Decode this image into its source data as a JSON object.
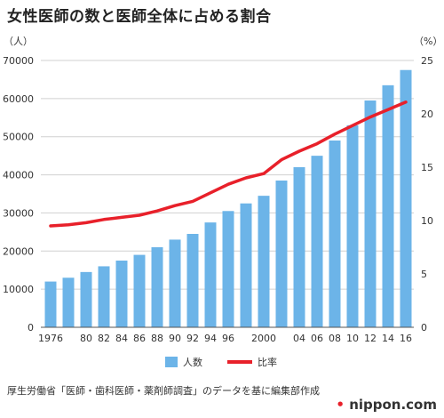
{
  "title": "女性医師の数と医師全体に占める割合",
  "source": "厚生労働省「医師・歯科医師・薬剤師調査」のデータを基に編集部作成",
  "brand": {
    "dot": "•",
    "name": "nippon.com"
  },
  "colors": {
    "bar": "#6cb4e8",
    "line": "#e8202a",
    "grid": "#d0d0d0",
    "axis": "#555555"
  },
  "chart_data": {
    "type": "bar",
    "x": [
      "1976",
      "1978",
      "1980",
      "1982",
      "1984",
      "1986",
      "1988",
      "1990",
      "1992",
      "1994",
      "1996",
      "1998",
      "2000",
      "2002",
      "2004",
      "2006",
      "2008",
      "2010",
      "2012",
      "2014",
      "2016"
    ],
    "x_tick_labels": [
      "1976",
      "",
      "80",
      "82",
      "84",
      "86",
      "88",
      "90",
      "92",
      "94",
      "96",
      "",
      "2000",
      "",
      "04",
      "06",
      "08",
      "10",
      "12",
      "14",
      "16"
    ],
    "left_axis": {
      "unit_label": "（人）",
      "ylim": [
        0,
        70000
      ],
      "ticks": [
        0,
        10000,
        20000,
        30000,
        40000,
        50000,
        60000,
        70000
      ]
    },
    "right_axis": {
      "unit_label": "（%）",
      "ylim": [
        0,
        25
      ],
      "ticks": [
        0,
        5,
        10,
        15,
        20,
        25
      ]
    },
    "series": [
      {
        "name": "人数",
        "type": "bar",
        "axis": "left",
        "values": [
          12000,
          13000,
          14500,
          16000,
          17500,
          19000,
          21000,
          23000,
          24500,
          27500,
          30500,
          32500,
          34500,
          38500,
          42000,
          45000,
          49000,
          53000,
          59500,
          63500,
          67500
        ]
      },
      {
        "name": "比率",
        "type": "line",
        "axis": "right",
        "values": [
          9.5,
          9.6,
          9.8,
          10.1,
          10.3,
          10.5,
          10.9,
          11.4,
          11.8,
          12.6,
          13.4,
          14.0,
          14.4,
          15.7,
          16.5,
          17.2,
          18.1,
          18.9,
          19.7,
          20.4,
          21.1
        ]
      }
    ],
    "grid": true,
    "legend": "bottom-center"
  }
}
